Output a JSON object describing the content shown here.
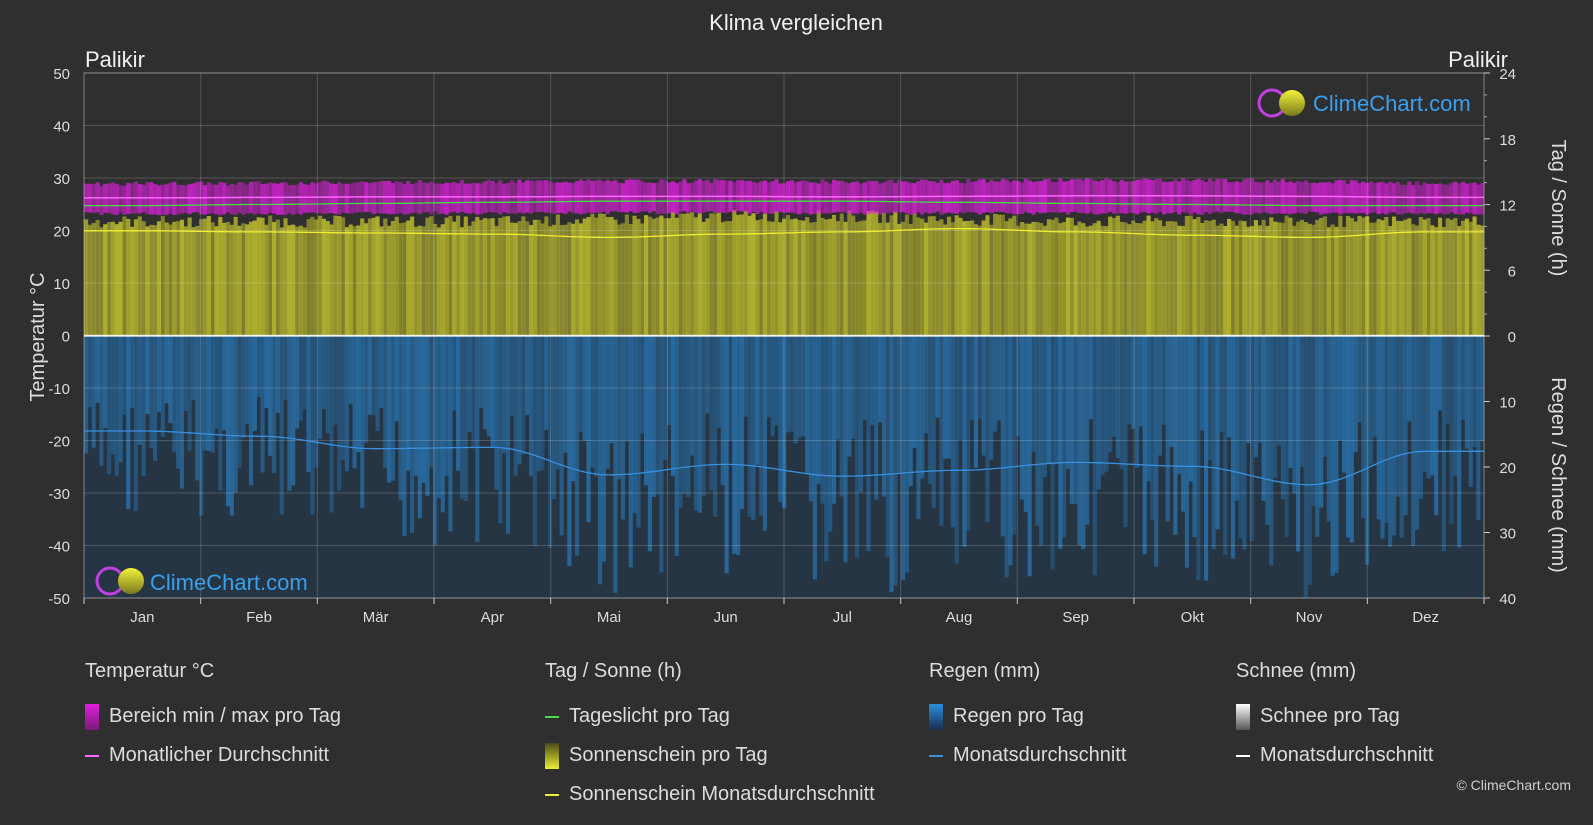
{
  "chart_data": {
    "type": "area",
    "title": "Klima vergleichen",
    "location_left": "Palikir",
    "location_right": "Palikir",
    "categories": [
      "Jan",
      "Feb",
      "Mär",
      "Apr",
      "Mai",
      "Jun",
      "Jul",
      "Aug",
      "Sep",
      "Okt",
      "Nov",
      "Dez"
    ],
    "y_left": {
      "label": "Temperatur °C",
      "range": [
        -50,
        50
      ],
      "ticks": [
        50,
        40,
        30,
        20,
        10,
        0,
        -10,
        -20,
        -30,
        -40,
        -50
      ]
    },
    "y_right_top": {
      "label": "Tag / Sonne (h)",
      "range": [
        0,
        24
      ],
      "ticks": [
        24,
        18,
        12,
        6,
        0
      ]
    },
    "y_right_bottom": {
      "label": "Regen / Schnee (mm)",
      "range": [
        0,
        40
      ],
      "ticks": [
        10,
        20,
        30,
        40
      ]
    },
    "grid": true,
    "series": [
      {
        "name": "Bereich min / max pro Tag",
        "kind": "band",
        "axis": "temp",
        "color": "#e020e0",
        "min": [
          23.5,
          23.5,
          23.6,
          23.6,
          23.7,
          23.7,
          23.6,
          23.6,
          23.6,
          23.6,
          23.6,
          23.5
        ],
        "max": [
          28.5,
          28.6,
          28.8,
          28.9,
          29.0,
          29.0,
          28.9,
          29.0,
          29.2,
          29.2,
          29.0,
          28.6
        ]
      },
      {
        "name": "Monatlicher Durchschnitt",
        "kind": "line",
        "axis": "temp",
        "color": "#ff66ff",
        "values": [
          26.2,
          26.3,
          26.4,
          26.4,
          26.5,
          26.5,
          26.4,
          26.5,
          26.6,
          26.6,
          26.5,
          26.3
        ]
      },
      {
        "name": "Tageslicht pro Tag",
        "kind": "line",
        "axis": "sun",
        "color": "#44dd44",
        "values": [
          11.9,
          12.0,
          12.1,
          12.2,
          12.3,
          12.3,
          12.3,
          12.2,
          12.1,
          12.0,
          11.9,
          11.9
        ]
      },
      {
        "name": "Sonnenschein pro Tag",
        "kind": "area",
        "axis": "sun",
        "color": "#bdbd2e",
        "values": [
          11.0,
          11.0,
          11.0,
          11.0,
          11.2,
          11.5,
          11.5,
          11.2,
          11.0,
          11.0,
          11.0,
          11.0
        ]
      },
      {
        "name": "Sonnenschein Monatsdurchschnitt",
        "kind": "line",
        "axis": "sun",
        "color": "#eeee33",
        "values": [
          9.6,
          9.5,
          9.4,
          9.3,
          9.0,
          9.3,
          9.5,
          9.8,
          9.5,
          9.2,
          9.0,
          9.5
        ]
      },
      {
        "name": "Regen pro Tag",
        "kind": "bars",
        "axis": "rain",
        "color": "#2a7ec0"
      },
      {
        "name": "Monatsdurchschnitt",
        "kind": "line",
        "axis": "rain",
        "color": "#3a90dd",
        "values": [
          14.5,
          15.3,
          17.2,
          17.0,
          21.2,
          19.6,
          21.4,
          20.5,
          19.3,
          19.9,
          22.7,
          17.6
        ]
      },
      {
        "name": "Schnee pro Tag",
        "kind": "bars",
        "axis": "rain",
        "color": "#ffffff"
      },
      {
        "name": "Monatsdurchschnitt",
        "kind": "line",
        "axis": "rain",
        "color": "#ffffff",
        "values": [
          0,
          0,
          0,
          0,
          0,
          0,
          0,
          0,
          0,
          0,
          0,
          0
        ]
      }
    ],
    "watermark": "ClimeChart.com"
  },
  "legend": {
    "temperature": {
      "title": "Temperatur °C",
      "items": [
        "Bereich min / max pro Tag",
        "Monatlicher Durchschnitt"
      ]
    },
    "sun": {
      "title": "Tag / Sonne (h)",
      "items": [
        "Tageslicht pro Tag",
        "Sonnenschein pro Tag",
        "Sonnenschein Monatsdurchschnitt"
      ]
    },
    "rain": {
      "title": "Regen (mm)",
      "items": [
        "Regen pro Tag",
        "Monatsdurchschnitt"
      ]
    },
    "snow": {
      "title": "Schnee (mm)",
      "items": [
        "Schnee pro Tag",
        "Monatsdurchschnitt"
      ]
    }
  },
  "colors": {
    "background": "#2f2f2f",
    "temp_band": "#e020e0",
    "temp_avg": "#ff66ff",
    "daylight": "#44dd44",
    "sunshine": "#bdbd2e",
    "sunshine_avg": "#eeee33",
    "rain": "#2a7ec0",
    "rain_avg": "#3a90dd",
    "snow": "#ffffff",
    "snow_avg": "#ffffff"
  },
  "copyright": "© ClimeChart.com"
}
